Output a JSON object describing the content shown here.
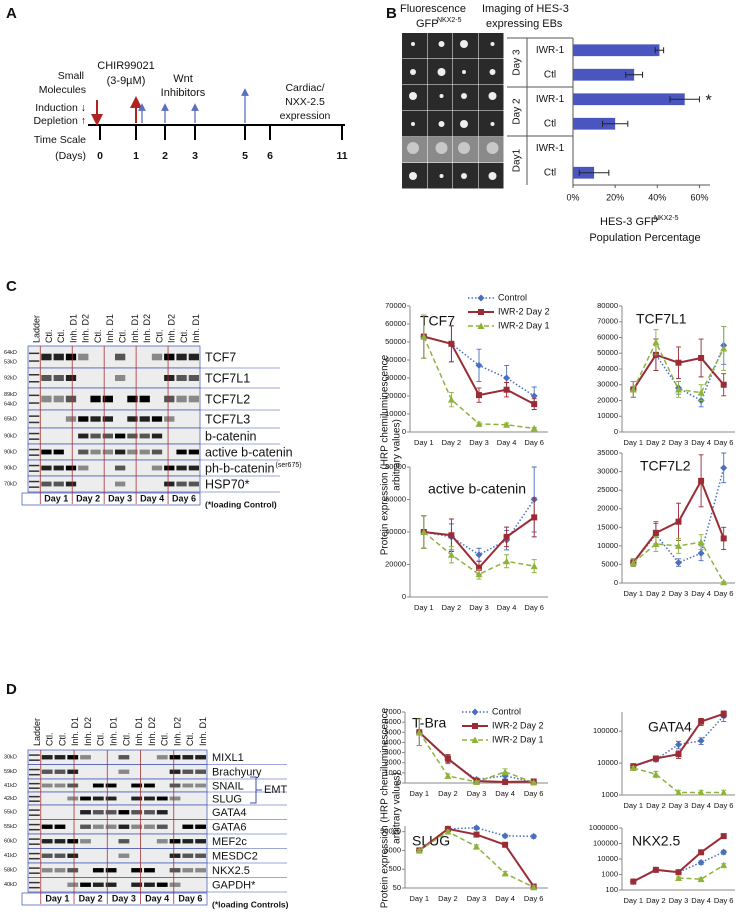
{
  "figure": {
    "panel_labels": [
      "A",
      "B",
      "C",
      "D"
    ],
    "timeline": {
      "left_labels": [
        "Small",
        "Molecules",
        "Induction ↓",
        "Depletion ↑",
        "Time Scale",
        "(Days)"
      ],
      "inducer": [
        "CHIR99021",
        "(3-9µM)"
      ],
      "inhibitors": [
        "Wnt",
        "Inhibitors"
      ],
      "readout": [
        "Cardiac/",
        "NXX-2.5",
        "expression"
      ],
      "days": [
        "0",
        "1",
        "2",
        "3",
        "5",
        "6",
        "11"
      ]
    },
    "imaging": {
      "title": [
        "Fluorescence",
        "Imaging of HES-3",
        "GFP",
        "NKX2-5",
        "expressing EBs"
      ]
    },
    "blot_c": {
      "lanes": [
        "Ladder",
        "Ctl.",
        "Ctl.",
        "Inh. D1",
        "Inh. D2",
        "Ctl.",
        "Inh. D1",
        "Ctl.",
        "Inh. D1",
        "Inh. D2",
        "Ctl.",
        "Inh. D2",
        "Ctl.",
        "Inh. D1"
      ],
      "rows": [
        {
          "mw": [
            "64kD",
            "53kD"
          ],
          "protein": "TCF7"
        },
        {
          "mw": [
            "92kD"
          ],
          "protein": "TCF7L1"
        },
        {
          "mw": [
            "89kD",
            "64kD"
          ],
          "protein": "TCF7L2"
        },
        {
          "mw": [
            "65kD"
          ],
          "protein": "TCF7L3"
        },
        {
          "mw": [
            "90kD"
          ],
          "protein": "b-catenin"
        },
        {
          "mw": [
            "90kD"
          ],
          "protein": "active b-catenin"
        },
        {
          "mw": [
            "90kD"
          ],
          "protein": "ph-b-catenin",
          "sup": "(ser675)"
        },
        {
          "mw": [
            "70kD"
          ],
          "protein": "HSP70*"
        }
      ],
      "days": [
        "Day 1",
        "Day 2",
        "Day 3",
        "Day 4",
        "Day 6"
      ],
      "note": "(*loading Control)"
    },
    "blot_d": {
      "lanes": [
        "Ladder",
        "Ctl.",
        "Ctl.",
        "Inh. D1",
        "Inh. D2",
        "Ctl.",
        "Inh. D1",
        "Ctl.",
        "Inh. D1",
        "Inh. D2",
        "Ctl.",
        "Inh. D2",
        "Ctl.",
        "Inh. D1"
      ],
      "rows": [
        {
          "mw": [
            "30kD"
          ],
          "protein": "MIXL1"
        },
        {
          "mw": [
            "59kD"
          ],
          "protein": "Brachyury"
        },
        {
          "mw": [
            "41kD"
          ],
          "protein": "SNAIL"
        },
        {
          "mw": [
            "42kD"
          ],
          "protein": "SLUG"
        },
        {
          "mw": [
            "55kD"
          ],
          "protein": "GATA4"
        },
        {
          "mw": [
            "55kD"
          ],
          "protein": "GATA6"
        },
        {
          "mw": [
            "60kD"
          ],
          "protein": "MEF2c"
        },
        {
          "mw": [
            "41kD"
          ],
          "protein": "MESDC2"
        },
        {
          "mw": [
            "58kD"
          ],
          "protein": "NKX2.5"
        },
        {
          "mw": [
            "40kD"
          ],
          "protein": "GAPDH*"
        }
      ],
      "days": [
        "Day 1",
        "Day 2",
        "Day 3",
        "Day 4",
        "Day 6"
      ],
      "note": "(*loading Controls)",
      "bracket": "EMT"
    },
    "ylabel_c": [
      "Protein expression (HRP chemiluminescence",
      "arbitrary values)"
    ],
    "ylabel_d": [
      "Protein expression (HRP chemiluminescence",
      "arbitrary values)"
    ]
  },
  "chart_data": [
    {
      "type": "barh",
      "categories": [
        "IWR-1",
        "Ctl",
        "IWR-1",
        "Ctl",
        "IWR-1",
        "Ctl"
      ],
      "groups": [
        "Day 3",
        "Day 2",
        "Day1"
      ],
      "values": [
        41,
        29,
        53,
        20,
        null,
        10
      ],
      "errors": [
        2,
        4,
        7,
        6,
        null,
        7
      ],
      "significance": [
        null,
        null,
        "*",
        null,
        null,
        null
      ],
      "color": "#4a55c0",
      "xlim": [
        0,
        65
      ],
      "xticks": [
        {
          "value": 0,
          "label": "0%"
        },
        {
          "value": 20,
          "label": "20%"
        },
        {
          "value": 40,
          "label": "40%"
        },
        {
          "value": 60,
          "label": "60%"
        }
      ],
      "xlabel": [
        "HES-3 GFP",
        "NKX2-5",
        "Population Percentage"
      ]
    },
    {
      "type": "line",
      "title": "TCF7",
      "categories": [
        "Day 1",
        "Day 2",
        "Day 3",
        "Day 4",
        "Day 6"
      ],
      "ylim": [
        0,
        70000
      ],
      "yticks": [
        0,
        10000,
        20000,
        30000,
        40000,
        50000,
        60000,
        70000
      ],
      "legend": true,
      "series": [
        {
          "name": "Control",
          "color": "#4a6fbf",
          "dash": "dotted",
          "marker": "diamond",
          "values": [
            53000,
            49000,
            37000,
            30000,
            20000
          ],
          "errors": [
            12000,
            10000,
            9000,
            7000,
            5000
          ]
        },
        {
          "name": "IWR-2 Day 2",
          "color": "#9b2b35",
          "dash": "solid",
          "marker": "square",
          "values": [
            53000,
            49000,
            20500,
            23500,
            15500
          ],
          "errors": [
            12000,
            10000,
            4000,
            4000,
            3000
          ]
        },
        {
          "name": "IWR-2 Day 1",
          "color": "#8db33a",
          "dash": "dashed",
          "marker": "triangle",
          "values": [
            53000,
            18000,
            4500,
            4000,
            2000
          ],
          "errors": [
            12000,
            4000,
            1000,
            1000,
            500
          ]
        }
      ]
    },
    {
      "type": "line",
      "title": "TCF7L1",
      "categories": [
        "Day 1",
        "Day 2",
        "Day 3",
        "Day 4",
        "Day 6"
      ],
      "ylim": [
        0,
        80000
      ],
      "yticks": [
        0,
        10000,
        20000,
        30000,
        40000,
        50000,
        60000,
        70000,
        80000
      ],
      "series": [
        {
          "name": "Control",
          "color": "#4a6fbf",
          "dash": "dotted",
          "marker": "diamond",
          "values": [
            27000,
            49000,
            28000,
            20000,
            55000
          ],
          "errors": [
            5000,
            10000,
            4000,
            4000,
            12000
          ]
        },
        {
          "name": "IWR-2 Day 2",
          "color": "#9b2b35",
          "dash": "solid",
          "marker": "square",
          "values": [
            27000,
            49000,
            44000,
            47000,
            30000
          ],
          "errors": [
            5000,
            10000,
            10000,
            12000,
            7000
          ]
        },
        {
          "name": "IWR-2 Day 1",
          "color": "#8db33a",
          "dash": "dashed",
          "marker": "triangle",
          "values": [
            27000,
            57000,
            27000,
            25000,
            53000
          ],
          "errors": [
            5000,
            8000,
            5000,
            5000,
            14000
          ]
        }
      ]
    },
    {
      "type": "line",
      "title": "active b-catenin",
      "categories": [
        "Day 1",
        "Day 2",
        "Day 3",
        "Day 4",
        "Day 6"
      ],
      "ylim": [
        0,
        80000
      ],
      "yticks": [
        0,
        20000,
        40000,
        60000,
        80000
      ],
      "series": [
        {
          "name": "Control",
          "color": "#4a6fbf",
          "dash": "dotted",
          "marker": "diamond",
          "values": [
            40000,
            37000,
            26000,
            35000,
            60000
          ],
          "errors": [
            10000,
            8000,
            4000,
            6000,
            20000
          ]
        },
        {
          "name": "IWR-2 Day 2",
          "color": "#9b2b35",
          "dash": "solid",
          "marker": "square",
          "values": [
            40000,
            38000,
            18000,
            37000,
            49000
          ],
          "errors": [
            10000,
            10000,
            4000,
            6000,
            12000
          ]
        },
        {
          "name": "IWR-2 Day 1",
          "color": "#8db33a",
          "dash": "dashed",
          "marker": "triangle",
          "values": [
            40000,
            26000,
            14000,
            22000,
            19000
          ],
          "errors": [
            10000,
            5000,
            3000,
            4000,
            4000
          ]
        }
      ]
    },
    {
      "type": "line",
      "title": "TCF7L2",
      "categories": [
        "Day 1",
        "Day 2",
        "Day 3",
        "Day 4",
        "Day 6"
      ],
      "ylim": [
        0,
        35000
      ],
      "yticks": [
        0,
        5000,
        10000,
        15000,
        20000,
        25000,
        30000,
        35000
      ],
      "series": [
        {
          "name": "Control",
          "color": "#4a6fbf",
          "dash": "dotted",
          "marker": "diamond",
          "values": [
            5500,
            13000,
            5500,
            8000,
            31000
          ],
          "errors": [
            1000,
            3000,
            1000,
            2000,
            4000
          ]
        },
        {
          "name": "IWR-2 Day 2",
          "color": "#9b2b35",
          "dash": "solid",
          "marker": "square",
          "values": [
            5500,
            13500,
            16500,
            27500,
            12000
          ],
          "errors": [
            1000,
            3000,
            5000,
            7000,
            3000
          ]
        },
        {
          "name": "IWR-2 Day 1",
          "color": "#8db33a",
          "dash": "dashed",
          "marker": "triangle",
          "values": [
            5500,
            10500,
            10000,
            11000,
            200
          ],
          "errors": [
            1000,
            2000,
            2000,
            2000,
            200
          ]
        }
      ]
    },
    {
      "type": "line",
      "title": "T-Bra",
      "categories": [
        "Day 1",
        "Day 2",
        "Day 3",
        "Day 4",
        "Day 6"
      ],
      "ylim": [
        0,
        7000
      ],
      "yticks": [
        0,
        1000,
        2000,
        3000,
        4000,
        5000,
        6000,
        7000
      ],
      "legend": true,
      "series": [
        {
          "name": "Control",
          "color": "#4a6fbf",
          "dash": "dotted",
          "marker": "diamond",
          "values": [
            5000,
            2300,
            350,
            700,
            100
          ],
          "errors": [
            1300,
            400,
            150,
            300,
            100
          ]
        },
        {
          "name": "IWR-2 Day 2",
          "color": "#9b2b35",
          "dash": "solid",
          "marker": "square",
          "values": [
            5000,
            2400,
            200,
            100,
            150
          ],
          "errors": [
            1300,
            400,
            100,
            80,
            80
          ]
        },
        {
          "name": "IWR-2 Day 1",
          "color": "#8db33a",
          "dash": "dashed",
          "marker": "triangle",
          "values": [
            5000,
            700,
            100,
            1100,
            50
          ],
          "errors": [
            1300,
            200,
            80,
            300,
            40
          ]
        }
      ]
    },
    {
      "type": "line",
      "title": "GATA4",
      "log": true,
      "categories": [
        "Day 1",
        "Day 2",
        "Day 3",
        "Day 4",
        "Day 6"
      ],
      "ylim": [
        1000,
        400000
      ],
      "yticks": [
        1000,
        10000,
        100000
      ],
      "series": [
        {
          "name": "Control",
          "color": "#4a6fbf",
          "dash": "dotted",
          "marker": "diamond",
          "values": [
            8000,
            13000,
            38000,
            50000,
            300000
          ],
          "errors": [
            1000,
            2000,
            10000,
            12000,
            100000
          ]
        },
        {
          "name": "IWR-2 Day 2",
          "color": "#9b2b35",
          "dash": "solid",
          "marker": "square",
          "values": [
            8000,
            14000,
            19000,
            200000,
            350000
          ],
          "errors": [
            1000,
            2000,
            5000,
            50000,
            80000
          ]
        },
        {
          "name": "IWR-2 Day 1",
          "color": "#8db33a",
          "dash": "dashed",
          "marker": "triangle",
          "values": [
            7000,
            4500,
            1200,
            1200,
            1200
          ],
          "errors": [
            800,
            1000,
            200,
            200,
            200
          ]
        }
      ]
    },
    {
      "type": "line",
      "title": "SLUG",
      "log": true,
      "categories": [
        "Day 1",
        "Day 2",
        "Day 3",
        "Day 4",
        "Day 6"
      ],
      "ylim": [
        50,
        100000
      ],
      "yticks": [
        50,
        500,
        5000,
        50000
      ],
      "series": [
        {
          "name": "Control",
          "color": "#4a6fbf",
          "dash": "dotted",
          "marker": "diamond",
          "values": [
            5000,
            70000,
            80000,
            30000,
            28000
          ],
          "errors": [
            500,
            10000,
            15000,
            6000,
            6000
          ]
        },
        {
          "name": "IWR-2 Day 2",
          "color": "#9b2b35",
          "dash": "solid",
          "marker": "square",
          "values": [
            5000,
            70000,
            35000,
            10000,
            60
          ],
          "errors": [
            500,
            8000,
            8000,
            2000,
            10
          ]
        },
        {
          "name": "IWR-2 Day 1",
          "color": "#8db33a",
          "dash": "dashed",
          "marker": "triangle",
          "values": [
            5000,
            50000,
            8000,
            300,
            55
          ],
          "errors": [
            500,
            10000,
            2000,
            80,
            10
          ]
        }
      ]
    },
    {
      "type": "line",
      "title": "NKX2.5",
      "log": true,
      "categories": [
        "Day 1",
        "Day 2",
        "Day 3",
        "Day 4",
        "Day 6"
      ],
      "ylim": [
        100,
        1000000
      ],
      "yticks": [
        100,
        1000,
        10000,
        100000,
        1000000
      ],
      "series": [
        {
          "name": "Control",
          "color": "#4a6fbf",
          "dash": "dotted",
          "marker": "diamond",
          "values": [
            350,
            2000,
            1400,
            6000,
            28000
          ],
          "errors": [
            60,
            300,
            200,
            1500,
            8000
          ]
        },
        {
          "name": "IWR-2 Day 2",
          "color": "#9b2b35",
          "dash": "solid",
          "marker": "square",
          "values": [
            350,
            2000,
            1400,
            27000,
            300000
          ],
          "errors": [
            60,
            300,
            200,
            5000,
            50000
          ]
        },
        {
          "name": "IWR-2 Day 1",
          "color": "#8db33a",
          "dash": "dashed",
          "marker": "triangle",
          "values": [
            null,
            null,
            600,
            500,
            4000
          ],
          "errors": [
            null,
            null,
            100,
            100,
            1000
          ]
        }
      ]
    }
  ]
}
